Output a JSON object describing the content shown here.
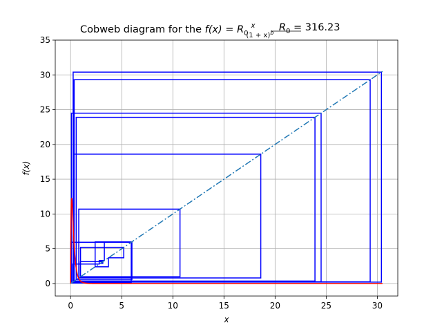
{
  "chart_data": {
    "type": "line",
    "title_prefix": "Cobweb diagram for the ",
    "title_formula": "f(x) = R",
    "title_formula_sub": "0",
    "title_frac_num": "x",
    "title_frac_den": "(1 + x)",
    "title_frac_den_exp": "b",
    "title_param": " R",
    "title_param_sub": "0",
    "title_param_value": " = 316.23",
    "xlabel": "x",
    "ylabel": "f(x)",
    "xlim": [
      -1.5,
      32
    ],
    "ylim": [
      -1.8,
      35
    ],
    "xticks": [
      0,
      5,
      10,
      15,
      20,
      25,
      30
    ],
    "yticks": [
      0,
      5,
      10,
      15,
      20,
      25,
      30,
      35
    ],
    "grid": true,
    "params": {
      "R0": 316.23,
      "b": 10,
      "x_range": [
        0,
        30.5
      ]
    },
    "colors": {
      "curve": "#ff0000",
      "identity": "#1f77b4",
      "cobweb": "#0000ff",
      "grid": "#b0b0b0"
    },
    "series": [
      {
        "kind": "function",
        "x_start": 0,
        "x_end": 30.5
      },
      {
        "kind": "identity-line",
        "x": [
          0,
          30.5
        ],
        "y": [
          0,
          30.5
        ]
      },
      {
        "kind": "cobweb",
        "orbit": [
          0.02,
          5.93,
          0.08,
          24.5,
          0.27,
          18.6,
          0.8,
          10.7,
          0.97,
          5.2,
          3.7,
          2.4,
          6.0,
          0.55,
          23.9,
          0.35,
          29.3,
          0.25,
          30.4,
          0.2,
          2.8,
          3.3,
          5.95,
          0.95,
          3.15,
          2.9
        ]
      }
    ]
  }
}
